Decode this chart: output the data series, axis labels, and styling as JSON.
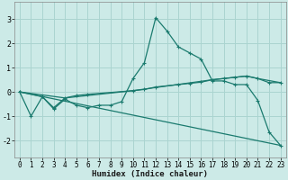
{
  "xlabel": "Humidex (Indice chaleur)",
  "bg_color": "#cceae7",
  "grid_color": "#aad4d0",
  "line_color": "#1a7a6e",
  "xlim": [
    -0.5,
    23.5
  ],
  "ylim": [
    -2.7,
    3.7
  ],
  "xticks": [
    0,
    1,
    2,
    3,
    4,
    5,
    6,
    7,
    8,
    9,
    10,
    11,
    12,
    13,
    14,
    15,
    16,
    17,
    18,
    19,
    20,
    21,
    22,
    23
  ],
  "yticks": [
    -2,
    -1,
    0,
    1,
    2,
    3
  ],
  "line1_x": [
    0,
    1,
    2,
    3,
    4,
    5,
    6,
    7,
    8,
    9,
    10,
    11,
    12,
    13,
    14,
    15,
    16,
    17,
    18,
    19,
    20,
    21,
    22,
    23
  ],
  "line1_y": [
    0.0,
    -1.0,
    -0.2,
    -0.7,
    -0.3,
    -0.55,
    -0.65,
    -0.55,
    -0.55,
    -0.4,
    0.55,
    1.2,
    3.05,
    2.5,
    1.85,
    1.6,
    1.35,
    0.45,
    0.45,
    0.3,
    0.3,
    -0.35,
    -1.65,
    -2.2
  ],
  "line2_x": [
    0,
    2,
    3,
    4,
    5,
    6,
    10,
    11,
    12,
    14,
    15,
    16,
    17,
    18,
    19,
    20,
    21,
    22,
    23
  ],
  "line2_y": [
    0.0,
    -0.2,
    -0.65,
    -0.25,
    -0.15,
    -0.1,
    0.05,
    0.1,
    0.2,
    0.3,
    0.35,
    0.4,
    0.5,
    0.55,
    0.6,
    0.65,
    0.55,
    0.38,
    0.38
  ],
  "line3_x": [
    0,
    23
  ],
  "line3_y": [
    0.0,
    -2.2
  ],
  "line4_x": [
    0,
    4,
    10,
    17,
    19,
    20,
    21,
    23
  ],
  "line4_y": [
    0.0,
    -0.25,
    0.05,
    0.5,
    0.6,
    0.65,
    0.55,
    0.38
  ]
}
